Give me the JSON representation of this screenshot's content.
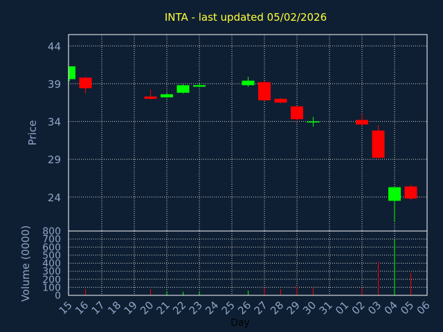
{
  "title": "INTA - last updated 05/02/2026",
  "colors": {
    "background": "#0f1f33",
    "plot_border": "#ffffff",
    "grid": "#d8d8d8",
    "up": "#00ff00",
    "down": "#ff0000",
    "title": "#ffff3a",
    "axis_text": "#8fa6c8"
  },
  "chart_data": [
    {
      "type": "candlestick",
      "ylabel": "Price",
      "xlabel": "Day",
      "ylim": [
        19.5,
        45.5
      ],
      "y_ticks": [
        24,
        29,
        34,
        39,
        44
      ],
      "grid": true,
      "categories": [
        "15",
        "16",
        "17",
        "18",
        "19",
        "20",
        "21",
        "22",
        "23",
        "24",
        "25",
        "26",
        "27",
        "28",
        "29",
        "30",
        "31",
        "01",
        "02",
        "03",
        "04",
        "05",
        "06"
      ],
      "candles": [
        {
          "x": "15",
          "open": 39.6,
          "high": 41.3,
          "low": 39.3,
          "close": 41.3
        },
        {
          "x": "16",
          "open": 39.8,
          "high": 39.9,
          "low": 37.7,
          "close": 38.4
        },
        {
          "x": "20",
          "open": 37.3,
          "high": 38.2,
          "low": 36.9,
          "close": 37.0
        },
        {
          "x": "21",
          "open": 37.2,
          "high": 37.7,
          "low": 37.1,
          "close": 37.6
        },
        {
          "x": "22",
          "open": 37.8,
          "high": 38.9,
          "low": 37.7,
          "close": 38.8
        },
        {
          "x": "23",
          "open": 38.6,
          "high": 39.2,
          "low": 38.5,
          "close": 38.8
        },
        {
          "x": "26",
          "open": 38.8,
          "high": 39.9,
          "low": 38.6,
          "close": 39.4
        },
        {
          "x": "27",
          "open": 39.2,
          "high": 39.3,
          "low": 36.7,
          "close": 36.8
        },
        {
          "x": "28",
          "open": 37.0,
          "high": 37.1,
          "low": 36.4,
          "close": 36.5
        },
        {
          "x": "29",
          "open": 36.0,
          "high": 36.0,
          "low": 34.1,
          "close": 34.3
        },
        {
          "x": "30",
          "open": 34.0,
          "high": 34.6,
          "low": 33.3,
          "close": 34.0
        },
        {
          "x": "02",
          "open": 34.2,
          "high": 35.0,
          "low": 33.4,
          "close": 33.6
        },
        {
          "x": "03",
          "open": 32.8,
          "high": 33.5,
          "low": 29.0,
          "close": 29.2
        },
        {
          "x": "04",
          "open": 23.5,
          "high": 25.3,
          "low": 20.7,
          "close": 25.3
        },
        {
          "x": "05",
          "open": 25.4,
          "high": 25.6,
          "low": 23.6,
          "close": 23.8
        }
      ]
    },
    {
      "type": "bar",
      "ylabel": "Volume (0000)",
      "ylim": [
        0,
        800
      ],
      "y_ticks": [
        0,
        100,
        200,
        300,
        400,
        500,
        600,
        700,
        800
      ],
      "categories": [
        "15",
        "16",
        "17",
        "18",
        "19",
        "20",
        "21",
        "22",
        "23",
        "24",
        "25",
        "26",
        "27",
        "28",
        "29",
        "30",
        "31",
        "01",
        "02",
        "03",
        "04",
        "05",
        "06"
      ],
      "bars": [
        {
          "x": "16",
          "value": 80,
          "direction": "down"
        },
        {
          "x": "20",
          "value": 75,
          "direction": "down"
        },
        {
          "x": "21",
          "value": 50,
          "direction": "up"
        },
        {
          "x": "22",
          "value": 45,
          "direction": "up"
        },
        {
          "x": "23",
          "value": 50,
          "direction": "up"
        },
        {
          "x": "26",
          "value": 60,
          "direction": "up"
        },
        {
          "x": "27",
          "value": 95,
          "direction": "down"
        },
        {
          "x": "28",
          "value": 75,
          "direction": "down"
        },
        {
          "x": "29",
          "value": 110,
          "direction": "down"
        },
        {
          "x": "30",
          "value": 95,
          "direction": "down"
        },
        {
          "x": "02",
          "value": 95,
          "direction": "down"
        },
        {
          "x": "03",
          "value": 420,
          "direction": "down"
        },
        {
          "x": "04",
          "value": 700,
          "direction": "up"
        },
        {
          "x": "05",
          "value": 280,
          "direction": "down"
        }
      ]
    }
  ]
}
